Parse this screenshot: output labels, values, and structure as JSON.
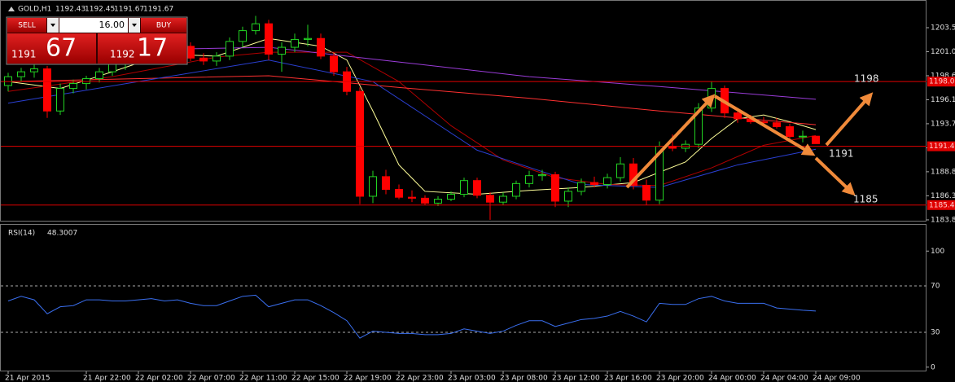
{
  "header": {
    "symbol": "GOLD,H1"
  },
  "trade_panel": {
    "sell": "SELL",
    "buy": "BUY",
    "volume": "16.00",
    "bid_big": "1191",
    "bid_small": "67",
    "ask_big": "1192",
    "ask_small": "17"
  },
  "annotations": [
    {
      "text": "1198"
    },
    {
      "text": "1191"
    },
    {
      "text": "1185"
    }
  ],
  "chart_data": [
    {
      "type": "candlestick",
      "up_color": "#22d322",
      "down_color": "#ff0000",
      "level_color": "#e00000",
      "categories": [
        "21 Apr 2015",
        null,
        null,
        null,
        null,
        null,
        "21 Apr 22:00",
        null,
        null,
        null,
        "22 Apr 02:00",
        null,
        null,
        null,
        "22 Apr 07:00",
        null,
        null,
        null,
        "22 Apr 11:00",
        null,
        null,
        null,
        "22 Apr 15:00",
        null,
        null,
        null,
        "22 Apr 19:00",
        null,
        null,
        null,
        "22 Apr 23:00",
        null,
        null,
        null,
        "23 Apr 03:00",
        null,
        null,
        null,
        "23 Apr 08:00",
        null,
        null,
        null,
        "23 Apr 12:00",
        null,
        null,
        null,
        "23 Apr 16:00",
        null,
        null,
        null,
        "23 Apr 20:00",
        null,
        null,
        null,
        "24 Apr 00:00",
        null,
        null,
        null,
        "24 Apr 04:00",
        null,
        null,
        null,
        "24 Apr 09:00"
      ],
      "ohlc": [
        [
          1197.6,
          1198.9,
          1197.0,
          1198.5
        ],
        [
          1198.5,
          1199.4,
          1198.0,
          1199.0
        ],
        [
          1199.0,
          1199.9,
          1198.4,
          1199.3
        ],
        [
          1199.3,
          1199.6,
          1194.3,
          1195.0
        ],
        [
          1195.0,
          1197.8,
          1194.6,
          1197.3
        ],
        [
          1197.3,
          1198.2,
          1196.8,
          1197.8
        ],
        [
          1197.8,
          1198.6,
          1197.2,
          1198.3
        ],
        [
          1198.3,
          1199.4,
          1197.9,
          1199.0
        ],
        [
          1199.0,
          1200.2,
          1198.6,
          1199.8
        ],
        [
          1199.8,
          1200.6,
          1199.2,
          1200.3
        ],
        [
          1200.3,
          1201.2,
          1199.9,
          1200.8
        ],
        [
          1200.8,
          1201.5,
          1200.2,
          1201.1
        ],
        [
          1201.1,
          1201.8,
          1200.5,
          1200.9
        ],
        [
          1200.9,
          1201.9,
          1200.3,
          1201.6
        ],
        [
          1201.6,
          1202.0,
          1200.1,
          1200.4
        ],
        [
          1200.4,
          1200.9,
          1199.7,
          1200.1
        ],
        [
          1200.1,
          1201.0,
          1199.6,
          1200.6
        ],
        [
          1200.6,
          1202.5,
          1200.2,
          1202.1
        ],
        [
          1202.1,
          1203.6,
          1201.5,
          1203.2
        ],
        [
          1203.2,
          1204.7,
          1202.8,
          1203.9
        ],
        [
          1203.9,
          1204.3,
          1200.2,
          1200.8
        ],
        [
          1200.8,
          1202.0,
          1199.0,
          1201.5
        ],
        [
          1201.5,
          1202.9,
          1201.0,
          1202.3
        ],
        [
          1202.3,
          1203.8,
          1201.6,
          1202.4
        ],
        [
          1202.4,
          1202.9,
          1200.3,
          1200.6
        ],
        [
          1200.6,
          1201.0,
          1198.6,
          1199.0
        ],
        [
          1199.0,
          1199.5,
          1196.6,
          1197.0
        ],
        [
          1197.0,
          1197.4,
          1185.5,
          1186.3
        ],
        [
          1186.3,
          1188.9,
          1185.6,
          1188.3
        ],
        [
          1188.3,
          1189.0,
          1186.5,
          1187.0
        ],
        [
          1187.0,
          1187.5,
          1186.0,
          1186.2
        ],
        [
          1186.2,
          1186.9,
          1185.7,
          1186.1
        ],
        [
          1186.1,
          1186.4,
          1185.4,
          1185.6
        ],
        [
          1185.6,
          1186.3,
          1185.3,
          1186.0
        ],
        [
          1186.0,
          1186.8,
          1185.8,
          1186.5
        ],
        [
          1186.5,
          1188.2,
          1186.2,
          1187.9
        ],
        [
          1187.9,
          1188.2,
          1186.1,
          1186.4
        ],
        [
          1186.4,
          1186.7,
          1183.9,
          1185.7
        ],
        [
          1185.7,
          1186.7,
          1185.4,
          1186.3
        ],
        [
          1186.3,
          1187.9,
          1186.0,
          1187.6
        ],
        [
          1187.6,
          1188.9,
          1187.2,
          1188.4
        ],
        [
          1188.4,
          1189.0,
          1187.9,
          1188.5
        ],
        [
          1188.5,
          1188.8,
          1185.2,
          1185.8
        ],
        [
          1185.8,
          1187.2,
          1185.2,
          1186.8
        ],
        [
          1186.8,
          1188.1,
          1186.4,
          1187.7
        ],
        [
          1187.7,
          1188.3,
          1187.2,
          1187.5
        ],
        [
          1187.5,
          1188.6,
          1187.1,
          1188.2
        ],
        [
          1188.2,
          1190.3,
          1187.8,
          1189.6
        ],
        [
          1189.6,
          1190.2,
          1187.0,
          1187.4
        ],
        [
          1187.4,
          1188.0,
          1185.4,
          1185.9
        ],
        [
          1185.9,
          1191.9,
          1185.5,
          1191.4
        ],
        [
          1191.4,
          1192.6,
          1190.9,
          1191.2
        ],
        [
          1191.2,
          1192.0,
          1190.8,
          1191.6
        ],
        [
          1191.6,
          1195.8,
          1191.2,
          1195.3
        ],
        [
          1195.3,
          1198.0,
          1194.9,
          1197.3
        ],
        [
          1197.3,
          1197.6,
          1194.3,
          1194.8
        ],
        [
          1194.8,
          1195.2,
          1193.8,
          1194.2
        ],
        [
          1194.2,
          1194.6,
          1193.7,
          1193.9
        ],
        [
          1193.9,
          1194.4,
          1193.5,
          1193.8
        ],
        [
          1193.8,
          1194.3,
          1193.2,
          1193.4
        ],
        [
          1193.4,
          1193.7,
          1192.1,
          1192.4
        ],
        [
          1192.4,
          1193.0,
          1191.8,
          1192.43
        ],
        [
          1192.43,
          1192.45,
          1191.67,
          1191.67
        ]
      ],
      "indicators": [
        {
          "color": "#ffff99",
          "x": [
            0,
            4,
            8,
            12,
            16,
            20,
            24,
            26,
            28,
            30,
            32,
            36,
            40,
            44,
            48,
            52,
            54,
            56,
            58,
            60,
            62
          ],
          "values": [
            1198,
            1197.3,
            1199,
            1200.8,
            1200.6,
            1202.4,
            1201.6,
            1200.2,
            1195,
            1189.5,
            1186.8,
            1186.5,
            1186.9,
            1187.2,
            1187.7,
            1189.8,
            1192.2,
            1194.2,
            1194.6,
            1193.9,
            1193.1
          ]
        },
        {
          "color": "#b00000",
          "x": [
            0,
            8,
            16,
            20,
            26,
            30,
            34,
            38,
            42,
            46,
            50,
            54,
            58,
            62
          ],
          "values": [
            1197,
            1198.5,
            1200.5,
            1201,
            1201,
            1198,
            1193.5,
            1190,
            1188.2,
            1187.5,
            1187.4,
            1189.2,
            1191.5,
            1192.5
          ]
        },
        {
          "color": "#ff3030",
          "x": [
            0,
            20,
            30,
            40,
            50,
            62
          ],
          "values": [
            1198,
            1198.6,
            1197.4,
            1196.3,
            1195,
            1193.6
          ]
        },
        {
          "color": "#9a3cd8",
          "x": [
            0,
            20,
            30,
            40,
            50,
            62
          ],
          "values": [
            1201,
            1201.5,
            1200,
            1198.5,
            1197.5,
            1196.2
          ]
        },
        {
          "color": "#2a3fd0",
          "x": [
            0,
            10,
            20,
            28,
            36,
            44,
            50,
            56,
            62
          ],
          "values": [
            1195.8,
            1198,
            1200.2,
            1198,
            1191,
            1187.5,
            1187.2,
            1189.5,
            1191.1
          ]
        }
      ],
      "levels": [
        {
          "value": 1198.0,
          "label": "1198.0"
        },
        {
          "value": 1191.4,
          "label": "1191.4"
        },
        {
          "value": 1185.4,
          "label": "1185.4"
        }
      ],
      "ylim": [
        1183.72,
        1205.91
      ],
      "yticks": [
        {
          "value": 1203.5,
          "label": "1203.50"
        },
        1201.05,
        {
          "value": 1198.6,
          "label": "1198.60"
        },
        1196.15,
        {
          "value": 1193.7,
          "label": "1193.70"
        },
        1191.25,
        {
          "value": 1188.8,
          "label": "1188.80"
        },
        1186.35,
        1183.89
      ]
    },
    {
      "type": "line",
      "title": "RSI(14)",
      "last_value": 48.3007,
      "color": "#3a6ff0",
      "values": [
        57,
        61,
        58,
        46,
        52,
        53,
        58,
        58,
        57,
        57,
        58,
        59,
        57,
        58,
        55,
        53,
        53,
        57,
        61,
        62,
        52,
        55,
        58,
        58,
        53,
        47,
        40,
        25,
        31,
        30,
        29,
        29,
        28,
        28,
        29,
        33,
        31,
        29,
        31,
        36,
        40,
        40,
        35,
        38,
        41,
        42,
        44,
        48,
        44,
        39,
        55,
        54,
        54,
        59,
        61,
        57,
        55,
        55,
        55,
        51,
        50,
        49,
        48.3007
      ],
      "ylim": [
        0,
        100
      ],
      "yticks": [
        0,
        30,
        70,
        100
      ]
    }
  ]
}
